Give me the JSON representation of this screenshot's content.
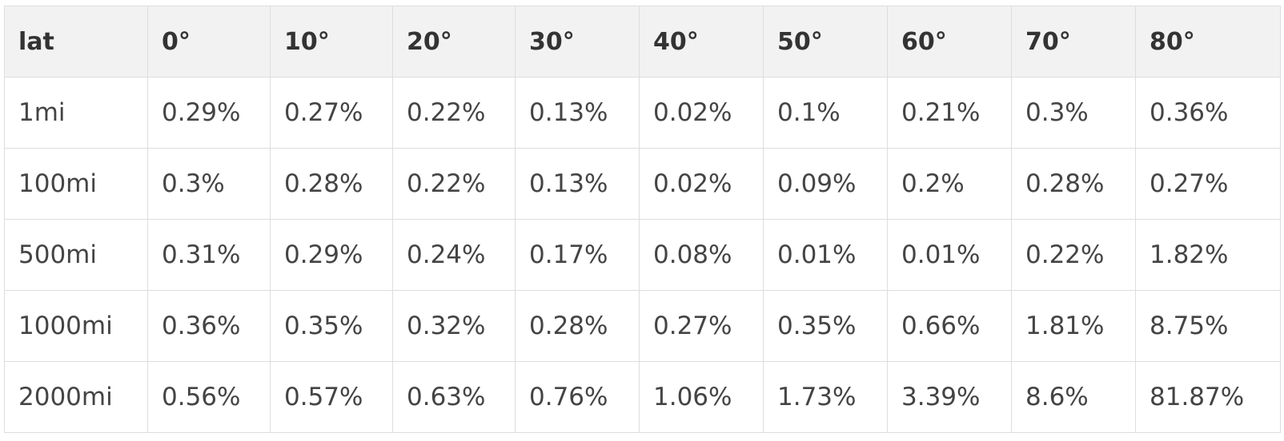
{
  "table": {
    "headers": [
      "lat",
      "0°",
      "10°",
      "20°",
      "30°",
      "40°",
      "50°",
      "60°",
      "70°",
      "80°"
    ],
    "rows": [
      [
        "1mi",
        "0.29%",
        "0.27%",
        "0.22%",
        "0.13%",
        "0.02%",
        "0.1%",
        "0.21%",
        "0.3%",
        "0.36%"
      ],
      [
        "100mi",
        "0.3%",
        "0.28%",
        "0.22%",
        "0.13%",
        "0.02%",
        "0.09%",
        "0.2%",
        "0.28%",
        "0.27%"
      ],
      [
        "500mi",
        "0.31%",
        "0.29%",
        "0.24%",
        "0.17%",
        "0.08%",
        "0.01%",
        "0.01%",
        "0.22%",
        "1.82%"
      ],
      [
        "1000mi",
        "0.36%",
        "0.35%",
        "0.32%",
        "0.28%",
        "0.27%",
        "0.35%",
        "0.66%",
        "1.81%",
        "8.75%"
      ],
      [
        "2000mi",
        "0.56%",
        "0.57%",
        "0.63%",
        "0.76%",
        "1.06%",
        "1.73%",
        "3.39%",
        "8.6%",
        "81.87%"
      ]
    ]
  },
  "colors": {
    "header_background": "#f2f2f2",
    "border": "#dddddd",
    "text": "#333333"
  }
}
